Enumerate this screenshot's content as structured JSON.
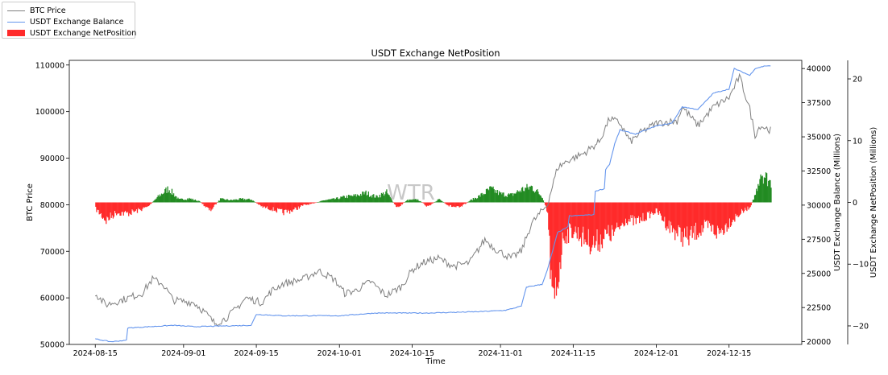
{
  "chart_data": {
    "type": "line",
    "title": "USDT Exchange NetPosition",
    "xlabel": "Time",
    "watermark": "WTR",
    "x_ticks": [
      "2024-08-15",
      "2024-09-01",
      "2024-09-15",
      "2024-10-01",
      "2024-10-15",
      "2024-11-01",
      "2024-11-15",
      "2024-12-01",
      "2024-12-15"
    ],
    "x_range": [
      "2024-08-10",
      "2024-12-29"
    ],
    "legend_position": "outside-top-left",
    "axes": {
      "btc": {
        "label": "BTC Price",
        "range": [
          50000,
          111000
        ],
        "ticks": [
          50000,
          60000,
          70000,
          80000,
          90000,
          100000,
          110000
        ]
      },
      "balance": {
        "label": "USDT Exchange Balance (Millions)",
        "range": [
          19800,
          40600
        ],
        "ticks": [
          20000,
          22500,
          25000,
          27500,
          30000,
          32500,
          35000,
          37500,
          40000
        ]
      },
      "netpos": {
        "label": "USDT Exchange NetPosition (Millions)",
        "range": [
          -23,
          23
        ],
        "ticks": [
          -20,
          -10,
          0,
          10,
          20
        ]
      }
    },
    "series": [
      {
        "name": "BTC Price",
        "color": "#808080",
        "axis": "btc",
        "points": [
          [
            "2024-08-15",
            61000
          ],
          [
            "2024-08-17",
            58500
          ],
          [
            "2024-08-20",
            59500
          ],
          [
            "2024-08-24",
            61000
          ],
          [
            "2024-08-26",
            64000
          ],
          [
            "2024-08-28",
            63000
          ],
          [
            "2024-08-30",
            59500
          ],
          [
            "2024-09-03",
            59000
          ],
          [
            "2024-09-05",
            57000
          ],
          [
            "2024-09-07",
            54500
          ],
          [
            "2024-09-09",
            55500
          ],
          [
            "2024-09-11",
            57500
          ],
          [
            "2024-09-13",
            60000
          ],
          [
            "2024-09-16",
            59000
          ],
          [
            "2024-09-18",
            61500
          ],
          [
            "2024-09-20",
            63000
          ],
          [
            "2024-09-24",
            64000
          ],
          [
            "2024-09-27",
            65800
          ],
          [
            "2024-09-30",
            64000
          ],
          [
            "2024-10-02",
            61000
          ],
          [
            "2024-10-04",
            61500
          ],
          [
            "2024-10-07",
            63500
          ],
          [
            "2024-10-10",
            60500
          ],
          [
            "2024-10-13",
            62500
          ],
          [
            "2024-10-15",
            66000
          ],
          [
            "2024-10-17",
            67500
          ],
          [
            "2024-10-20",
            68500
          ],
          [
            "2024-10-23",
            66800
          ],
          [
            "2024-10-26",
            67500
          ],
          [
            "2024-10-29",
            72500
          ],
          [
            "2024-10-31",
            70500
          ],
          [
            "2024-11-03",
            68500
          ],
          [
            "2024-11-05",
            70000
          ],
          [
            "2024-11-07",
            76000
          ],
          [
            "2024-11-10",
            80000
          ],
          [
            "2024-11-12",
            88000
          ],
          [
            "2024-11-14",
            89500
          ],
          [
            "2024-11-17",
            91000
          ],
          [
            "2024-11-20",
            93500
          ],
          [
            "2024-11-22",
            98500
          ],
          [
            "2024-11-24",
            97500
          ],
          [
            "2024-11-26",
            93500
          ],
          [
            "2024-11-28",
            95500
          ],
          [
            "2024-12-01",
            97500
          ],
          [
            "2024-12-05",
            98000
          ],
          [
            "2024-12-06",
            101000
          ],
          [
            "2024-12-09",
            97000
          ],
          [
            "2024-12-12",
            101000
          ],
          [
            "2024-12-15",
            103000
          ],
          [
            "2024-12-17",
            107500
          ],
          [
            "2024-12-19",
            100500
          ],
          [
            "2024-12-20",
            95000
          ],
          [
            "2024-12-21",
            97000
          ],
          [
            "2024-12-23",
            96000
          ]
        ]
      },
      {
        "name": "USDT Exchange Balance",
        "color": "#6495ed",
        "axis": "balance",
        "points": [
          [
            "2024-08-15",
            20200
          ],
          [
            "2024-08-18",
            20000
          ],
          [
            "2024-08-21",
            20100
          ],
          [
            "2024-08-21",
            21000
          ],
          [
            "2024-08-30",
            21200
          ],
          [
            "2024-09-03",
            21100
          ],
          [
            "2024-09-14",
            21200
          ],
          [
            "2024-09-15",
            22000
          ],
          [
            "2024-09-20",
            21900
          ],
          [
            "2024-10-01",
            21900
          ],
          [
            "2024-10-08",
            22100
          ],
          [
            "2024-10-18",
            22100
          ],
          [
            "2024-10-28",
            22200
          ],
          [
            "2024-11-02",
            22300
          ],
          [
            "2024-11-05",
            22600
          ],
          [
            "2024-11-06",
            24000
          ],
          [
            "2024-11-09",
            24200
          ],
          [
            "2024-11-10",
            25200
          ],
          [
            "2024-11-12",
            28000
          ],
          [
            "2024-11-14",
            28400
          ],
          [
            "2024-11-14",
            29200
          ],
          [
            "2024-11-19",
            29300
          ],
          [
            "2024-11-19",
            31000
          ],
          [
            "2024-11-21",
            31200
          ],
          [
            "2024-11-21",
            32500
          ],
          [
            "2024-11-22",
            33000
          ],
          [
            "2024-11-23",
            34500
          ],
          [
            "2024-11-24",
            35500
          ],
          [
            "2024-11-27",
            35200
          ],
          [
            "2024-12-01",
            35800
          ],
          [
            "2024-12-04",
            36000
          ],
          [
            "2024-12-06",
            37200
          ],
          [
            "2024-12-09",
            37000
          ],
          [
            "2024-12-12",
            38200
          ],
          [
            "2024-12-15",
            38500
          ],
          [
            "2024-12-16",
            40000
          ],
          [
            "2024-12-19",
            39500
          ],
          [
            "2024-12-20",
            40000
          ],
          [
            "2024-12-22",
            40200
          ],
          [
            "2024-12-23",
            40200
          ]
        ]
      },
      {
        "name": "USDT Exchange NetPosition",
        "color_positive": "#228b22",
        "color_negative": "#ff2a2a",
        "axis": "netpos",
        "type": "bar",
        "points": [
          [
            "2024-08-15",
            -1.2
          ],
          [
            "2024-08-17",
            -3.2
          ],
          [
            "2024-08-19",
            -1.8
          ],
          [
            "2024-08-21",
            -2.0
          ],
          [
            "2024-08-23",
            -1.5
          ],
          [
            "2024-08-25",
            -0.8
          ],
          [
            "2024-08-27",
            1.0
          ],
          [
            "2024-08-29",
            2.5
          ],
          [
            "2024-08-31",
            0.5
          ],
          [
            "2024-09-02",
            0.7
          ],
          [
            "2024-09-04",
            0.2
          ],
          [
            "2024-09-06",
            -1.5
          ],
          [
            "2024-09-08",
            0.6
          ],
          [
            "2024-09-10",
            0.4
          ],
          [
            "2024-09-12",
            0.6
          ],
          [
            "2024-09-14",
            0.5
          ],
          [
            "2024-09-16",
            -0.8
          ],
          [
            "2024-09-18",
            -1.2
          ],
          [
            "2024-09-20",
            -1.8
          ],
          [
            "2024-09-22",
            -1.4
          ],
          [
            "2024-09-24",
            -0.5
          ],
          [
            "2024-09-26",
            -0.2
          ],
          [
            "2024-09-28",
            0.4
          ],
          [
            "2024-09-30",
            0.6
          ],
          [
            "2024-10-02",
            1.0
          ],
          [
            "2024-10-04",
            1.2
          ],
          [
            "2024-10-06",
            1.7
          ],
          [
            "2024-10-08",
            1.0
          ],
          [
            "2024-10-10",
            1.8
          ],
          [
            "2024-10-12",
            -1.0
          ],
          [
            "2024-10-14",
            0.4
          ],
          [
            "2024-10-16",
            0.5
          ],
          [
            "2024-10-18",
            -0.8
          ],
          [
            "2024-10-20",
            0.6
          ],
          [
            "2024-10-22",
            -0.6
          ],
          [
            "2024-10-24",
            -1.0
          ],
          [
            "2024-10-26",
            0.3
          ],
          [
            "2024-10-28",
            1.2
          ],
          [
            "2024-10-30",
            2.4
          ],
          [
            "2024-11-01",
            1.5
          ],
          [
            "2024-11-03",
            1.3
          ],
          [
            "2024-11-05",
            2.3
          ],
          [
            "2024-11-07",
            2.8
          ],
          [
            "2024-11-09",
            1.0
          ],
          [
            "2024-11-10",
            -2.0
          ],
          [
            "2024-11-11",
            -20.5
          ],
          [
            "2024-11-13",
            -6.0
          ],
          [
            "2024-11-15",
            -5.0
          ],
          [
            "2024-11-17",
            -6.5
          ],
          [
            "2024-11-19",
            -7.5
          ],
          [
            "2024-11-21",
            -6.0
          ],
          [
            "2024-11-23",
            -5.5
          ],
          [
            "2024-11-25",
            -3.0
          ],
          [
            "2024-11-27",
            -3.5
          ],
          [
            "2024-11-29",
            -2.5
          ],
          [
            "2024-12-01",
            -1.5
          ],
          [
            "2024-12-03",
            -4.0
          ],
          [
            "2024-12-05",
            -5.5
          ],
          [
            "2024-12-07",
            -6.5
          ],
          [
            "2024-12-09",
            -5.0
          ],
          [
            "2024-12-11",
            -4.5
          ],
          [
            "2024-12-13",
            -5.5
          ],
          [
            "2024-12-15",
            -3.5
          ],
          [
            "2024-12-17",
            -2.0
          ],
          [
            "2024-12-19",
            -0.8
          ],
          [
            "2024-12-20",
            1.5
          ],
          [
            "2024-12-21",
            5.5
          ],
          [
            "2024-12-22",
            4.5
          ],
          [
            "2024-12-23",
            3.5
          ]
        ]
      }
    ]
  }
}
